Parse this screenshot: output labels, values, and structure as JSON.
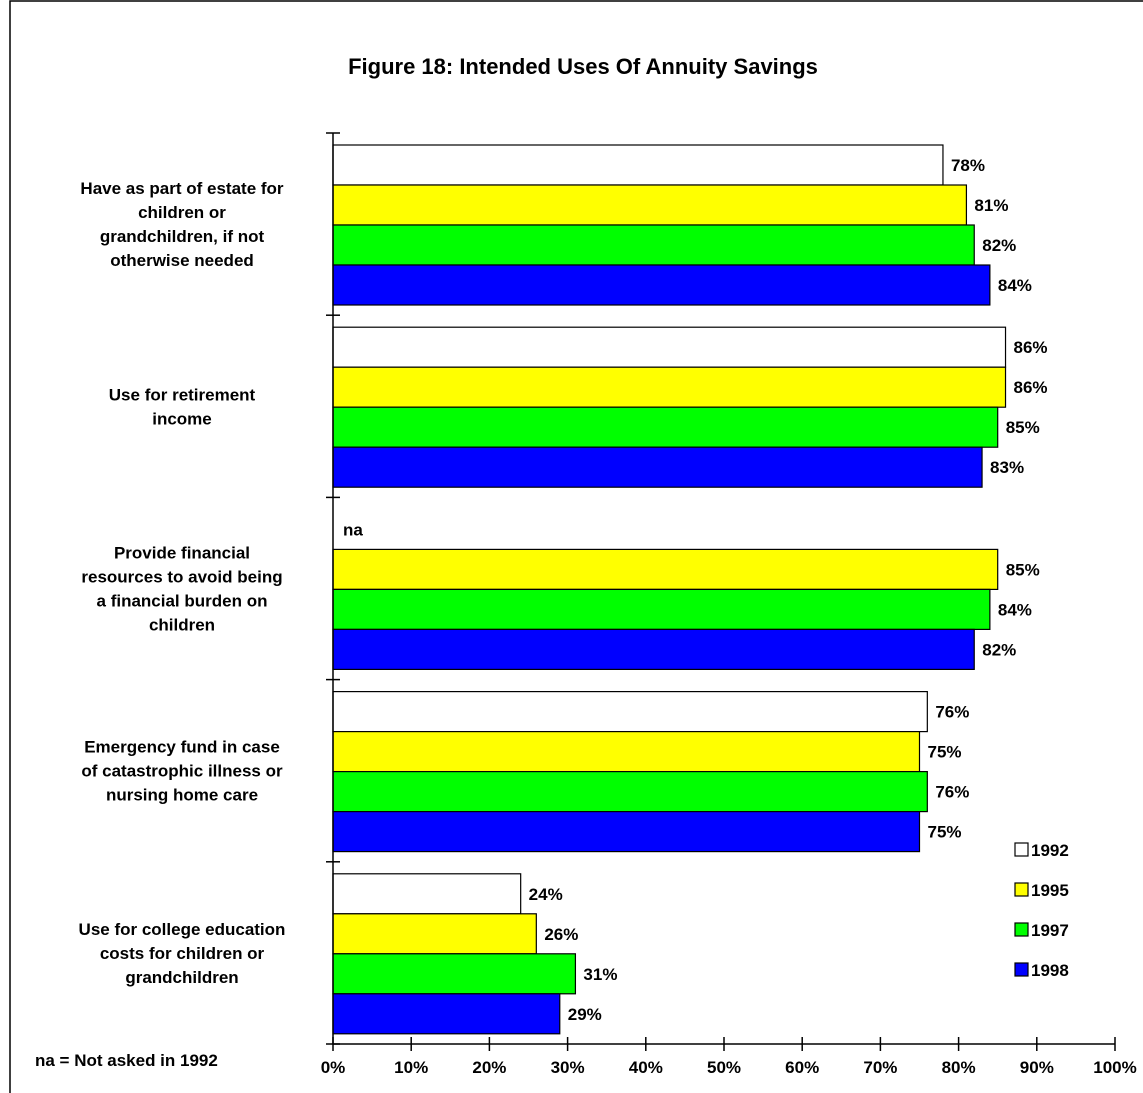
{
  "chart_data": {
    "type": "bar",
    "orientation": "horizontal",
    "title": "Figure 18:  Intended Uses Of Annuity Savings",
    "categories": [
      [
        "Have as part of estate for",
        "children or",
        "grandchildren, if not",
        "otherwise needed"
      ],
      [
        "Use for retirement",
        "income"
      ],
      [
        "Provide financial",
        "resources to avoid being",
        "a financial burden on",
        "children"
      ],
      [
        "Emergency fund in case",
        "of catastrophic illness or",
        "nursing home care"
      ],
      [
        "Use for college education",
        "costs for children or",
        "grandchildren"
      ]
    ],
    "series": [
      {
        "name": "1992",
        "color": "#ffffff",
        "values": [
          78,
          86,
          null,
          76,
          24
        ]
      },
      {
        "name": "1995",
        "color": "#ffff00",
        "values": [
          81,
          86,
          85,
          75,
          26
        ]
      },
      {
        "name": "1997",
        "color": "#00ff00",
        "values": [
          82,
          85,
          84,
          76,
          31
        ]
      },
      {
        "name": "1998",
        "color": "#0000ff",
        "values": [
          84,
          83,
          82,
          75,
          29
        ]
      }
    ],
    "value_labels": [
      [
        "78%",
        "86%",
        "na",
        "76%",
        "24%"
      ],
      [
        "81%",
        "86%",
        "85%",
        "75%",
        "26%"
      ],
      [
        "82%",
        "85%",
        "84%",
        "76%",
        "31%"
      ],
      [
        "84%",
        "83%",
        "82%",
        "75%",
        "29%"
      ]
    ],
    "xlim": [
      0,
      100
    ],
    "xticks": [
      "0%",
      "10%",
      "20%",
      "30%",
      "40%",
      "50%",
      "60%",
      "70%",
      "80%",
      "90%",
      "100%"
    ],
    "legend_position": "bottom-right",
    "footnote": "na  =  Not asked in 1992",
    "grid": false
  }
}
